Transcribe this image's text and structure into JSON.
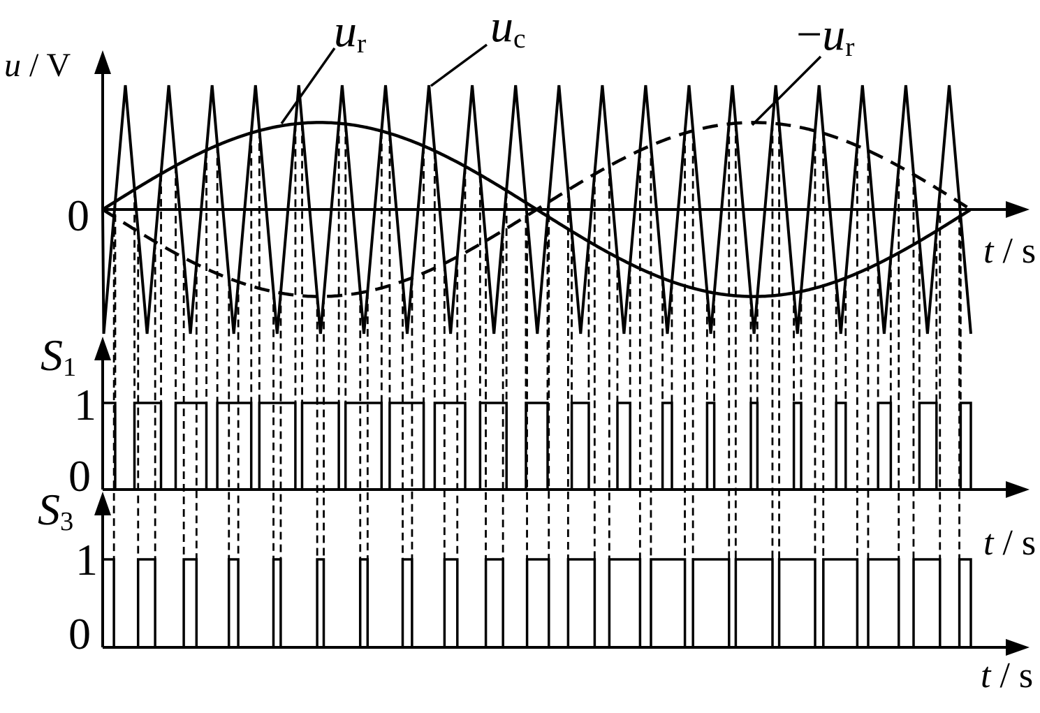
{
  "colors": {
    "ink": "#000000",
    "background": "#ffffff"
  },
  "labels": {
    "y_axis": {
      "var": "u",
      "sep": " / ",
      "unit": "V"
    },
    "t_axis": {
      "var": "t",
      "sep": " / ",
      "unit": "s"
    },
    "ur": {
      "prefix": "",
      "var": "u",
      "sub": "r"
    },
    "uc": {
      "prefix": "",
      "var": "u",
      "sub": "c"
    },
    "neg_ur": {
      "prefix": "−",
      "var": "u",
      "sub": "r"
    },
    "s1": {
      "var": "S",
      "sub": "1"
    },
    "s3": {
      "var": "S",
      "sub": "3"
    },
    "origin_zero": "0",
    "s1_level_one": "1",
    "s1_level_zero": "0",
    "s3_level_one": "1",
    "s3_level_zero": "0"
  },
  "chart_data": {
    "type": "line",
    "description": "Unipolar sinusoidal PWM: triangular carrier uc compared with sine reference ur and its inverse -ur; comparator outputs give switch gate signals S1 and S3 over one fundamental period.",
    "panels": [
      {
        "id": "voltage",
        "ylabel": "u / V",
        "xlabel": "t / s",
        "origin_label": "0",
        "series": [
          {
            "name": "u_c",
            "shape": "triangle",
            "periods_per_fundamental": 20,
            "amplitude": 1.0,
            "start": "zero, dropping to first minimum at t≈0",
            "line_style": "solid"
          },
          {
            "name": "u_r",
            "shape": "sine",
            "cycles": 1,
            "amplitude": 0.7,
            "phase_deg": 0,
            "line_style": "solid"
          },
          {
            "name": "−u_r",
            "shape": "sine",
            "cycles": 1,
            "amplitude": 0.7,
            "phase_deg": 180,
            "line_style": "dashed"
          }
        ],
        "y_range": [
          -1,
          1
        ],
        "x_range_fundamental_periods": 1
      },
      {
        "id": "S1",
        "ylabel": "S1",
        "xlabel": "t / s",
        "levels": [
          0,
          1
        ],
        "rule": "S1 = 1 when u_r ≥ u_c, else 0",
        "line_style": "solid square wave, dashed verticals dropped from comparator crossings"
      },
      {
        "id": "S3",
        "ylabel": "S3",
        "xlabel": "t / s",
        "levels": [
          0,
          1
        ],
        "rule": "S3 = 1 when −u_r ≥ u_c, else 0",
        "line_style": "solid square wave, dashed verticals dropped from comparator crossings"
      }
    ],
    "modulation_index": 0.7,
    "carrier_ratio": 20
  }
}
